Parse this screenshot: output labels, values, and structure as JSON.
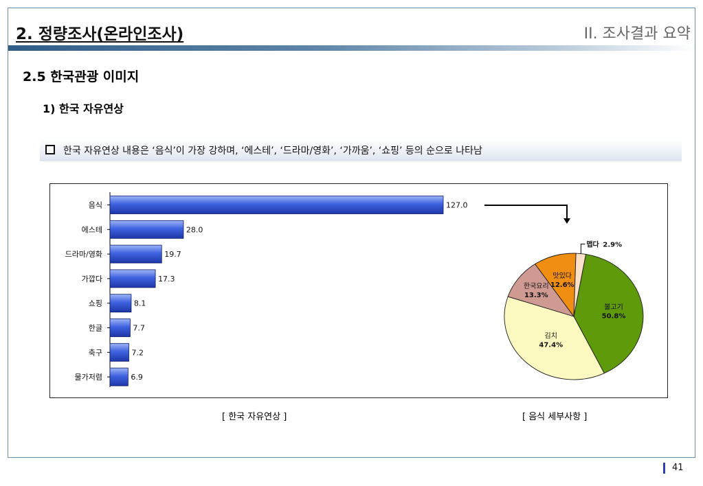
{
  "header": {
    "title": "2. 정량조사(온라인조사)",
    "section": "II. 조사결과 요약"
  },
  "section_title": "2.5 한국관광 이미지",
  "subsection_title": "1) 한국 자유연상",
  "summary": "한국 자유연상 내용은 ‘음식’이 가장 강하며, ‘에스테’, ‘드라마/영화’, ‘가까움’, ‘쇼핑’ 등의 순으로 나타남",
  "captions": {
    "bar": "[ 한국 자유연상 ]",
    "pie": "[ 음식 세부사항 ]"
  },
  "page_number": "41",
  "colors": {
    "bar": "#3a5bd9",
    "pie": [
      "#5f9a0a",
      "#fbf9c0",
      "#cf9a92",
      "#ef8e10",
      "#fde0c8"
    ]
  },
  "chart_data": [
    {
      "type": "bar",
      "orientation": "horizontal",
      "categories": [
        "음식",
        "에스테",
        "드라마/영화",
        "가깝다",
        "쇼핑",
        "한글",
        "축구",
        "물가저렴"
      ],
      "values": [
        127.0,
        28.0,
        19.7,
        17.3,
        8.1,
        7.7,
        7.2,
        6.9
      ],
      "value_labels": [
        "127.0",
        "28.0",
        "19.7",
        "17.3",
        "8.1",
        "7.7",
        "7.2",
        "6.9"
      ],
      "xlim": [
        0,
        127
      ]
    },
    {
      "type": "pie",
      "labels": [
        "불고기",
        "김치",
        "한국요리",
        "맛있다",
        "맵다"
      ],
      "values": [
        50.8,
        47.4,
        13.3,
        12.6,
        2.9
      ],
      "value_labels": [
        "50.8%",
        "47.4%",
        "13.3%",
        "12.6%",
        "2.9%"
      ]
    }
  ]
}
